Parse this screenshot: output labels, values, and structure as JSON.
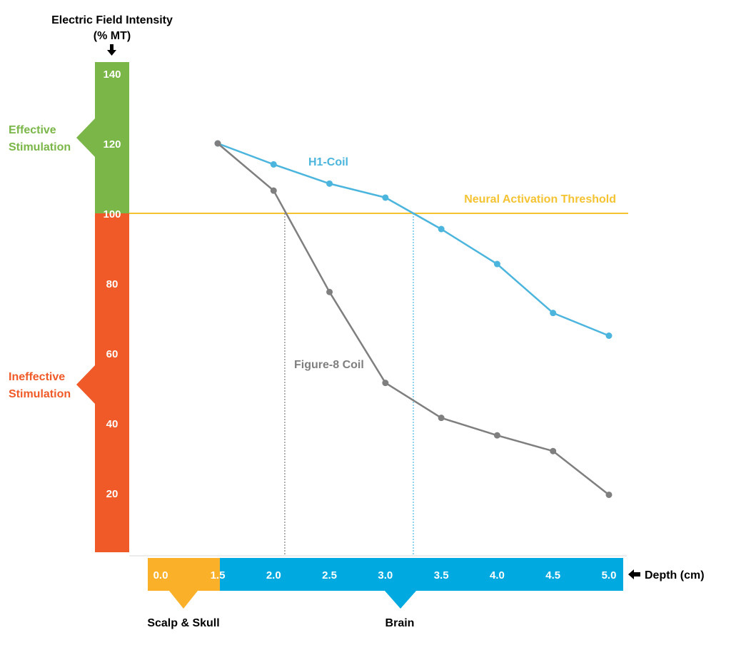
{
  "y_axis": {
    "title_line1": "Electric Field Intensity",
    "title_line2": "(% MT)",
    "ticks": [
      {
        "label": "140",
        "value": 140
      },
      {
        "label": "120",
        "value": 120
      },
      {
        "label": "100",
        "value": 100
      },
      {
        "label": "80",
        "value": 80
      },
      {
        "label": "60",
        "value": 60
      },
      {
        "label": "40",
        "value": 40
      },
      {
        "label": "20",
        "value": 20
      }
    ],
    "effective_zone": {
      "line1": "Effective",
      "line2": "Stimulation",
      "color": "#7ab648"
    },
    "ineffective_zone": {
      "line1": "Ineffective",
      "line2": "Stimulation",
      "color": "#f05a28"
    }
  },
  "x_axis": {
    "label": "Depth (cm)",
    "ticks": [
      {
        "label": "0.0",
        "value": 0.0
      },
      {
        "label": "1.5",
        "value": 1.5
      },
      {
        "label": "2.0",
        "value": 2.0
      },
      {
        "label": "2.5",
        "value": 2.5
      },
      {
        "label": "3.0",
        "value": 3.0
      },
      {
        "label": "3.5",
        "value": 3.5
      },
      {
        "label": "4.0",
        "value": 4.0
      },
      {
        "label": "4.5",
        "value": 4.5
      },
      {
        "label": "5.0",
        "value": 5.0
      }
    ],
    "scalp_region": {
      "label": "Scalp & Skull",
      "color": "#fbb02a"
    },
    "brain_region": {
      "label": "Brain",
      "color": "#00a9e0"
    }
  },
  "chart_data": {
    "type": "line",
    "title": "",
    "xlabel": "Depth (cm)",
    "ylabel": "Electric Field Intensity (% MT)",
    "xlim": [
      0.0,
      5.0
    ],
    "ylim": [
      0,
      140
    ],
    "x": [
      1.5,
      2.0,
      2.5,
      3.0,
      3.5,
      4.0,
      4.5,
      5.0
    ],
    "series": [
      {
        "name": "H1-Coil",
        "color": "#4bb5de",
        "values": [
          120,
          114,
          108.5,
          104.5,
          95.5,
          85.5,
          71.5,
          65
        ]
      },
      {
        "name": "Figure-8 Coil",
        "color": "#7f7f7f",
        "values": [
          120,
          106.5,
          77.5,
          51.5,
          41.5,
          36.5,
          32,
          19.5
        ]
      }
    ],
    "threshold": {
      "label": "Neural Activation Threshold",
      "value": 100,
      "color": "#f5c332"
    },
    "threshold_crossings": [
      {
        "series": "Figure-8 Coil",
        "x": 2.1
      },
      {
        "series": "H1-Coil",
        "x": 3.25
      }
    ]
  }
}
